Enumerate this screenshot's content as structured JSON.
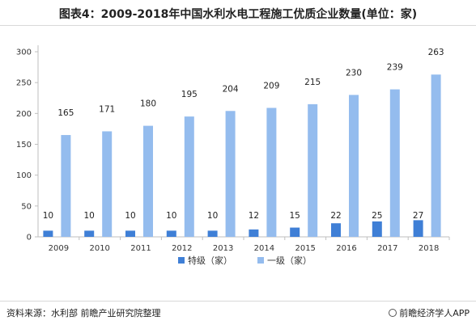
{
  "title": "图表4：2009-2018年中国水利水电工程施工优质企业数量(单位：家)",
  "source": "资料来源：水利部 前瞻产业研究院整理",
  "brand": "前瞻经济学人APP",
  "colors": {
    "special": "#3f7fd6",
    "first": "#94bcee",
    "axis": "#bfbfbf",
    "grid": "#e6e6e6"
  },
  "chart_data": {
    "type": "bar",
    "title": "2009-2018年中国水利水电工程施工优质企业数量(单位：家)",
    "categories": [
      "2009",
      "2010",
      "2011",
      "2012",
      "2013",
      "2014",
      "2015",
      "2016",
      "2017",
      "2018"
    ],
    "series": [
      {
        "name": "特级（家）",
        "values": [
          10,
          10,
          10,
          10,
          10,
          12,
          15,
          22,
          25,
          27
        ]
      },
      {
        "name": "一级（家）",
        "values": [
          165,
          171,
          180,
          195,
          204,
          209,
          215,
          230,
          239,
          263
        ]
      }
    ],
    "ylim": [
      0,
      300
    ],
    "yticks": [
      0,
      50,
      100,
      150,
      200,
      250,
      300
    ],
    "xlabel": "",
    "ylabel": "",
    "grid": false,
    "legend": "bottom"
  }
}
